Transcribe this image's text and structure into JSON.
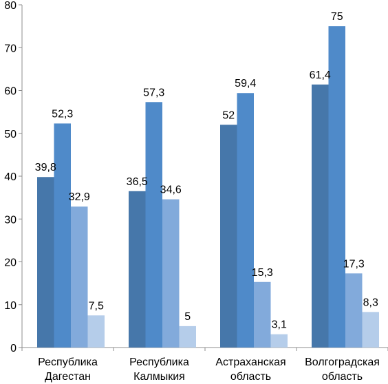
{
  "chart_data": {
    "type": "bar",
    "categories": [
      [
        "Республика",
        "Дагестан"
      ],
      [
        "Республика",
        "Калмыкия"
      ],
      [
        "Астраханская",
        "область"
      ],
      [
        "Волгоградская",
        "область"
      ]
    ],
    "series": [
      {
        "values": [
          39.8,
          36.5,
          52,
          61.4
        ],
        "labels": [
          "39,8",
          "36,5",
          "52",
          "61,4"
        ],
        "color": "#4677AA"
      },
      {
        "values": [
          52.3,
          57.3,
          59.4,
          75
        ],
        "labels": [
          "52,3",
          "57,3",
          "59,4",
          "75"
        ],
        "color": "#4F8AC9"
      },
      {
        "values": [
          32.9,
          34.6,
          15.3,
          17.3
        ],
        "labels": [
          "32,9",
          "34,6",
          "15,3",
          "17,3"
        ],
        "color": "#82AADB"
      },
      {
        "values": [
          7.5,
          5,
          3.1,
          8.3
        ],
        "labels": [
          "7,5",
          "5",
          "3,1",
          "8,3"
        ],
        "color": "#B5CDEA"
      }
    ],
    "ylim": [
      0,
      80
    ],
    "yticks": [
      "0",
      "10",
      "20",
      "30",
      "40",
      "50",
      "60",
      "70",
      "80"
    ],
    "legend": "none",
    "grid": false
  }
}
